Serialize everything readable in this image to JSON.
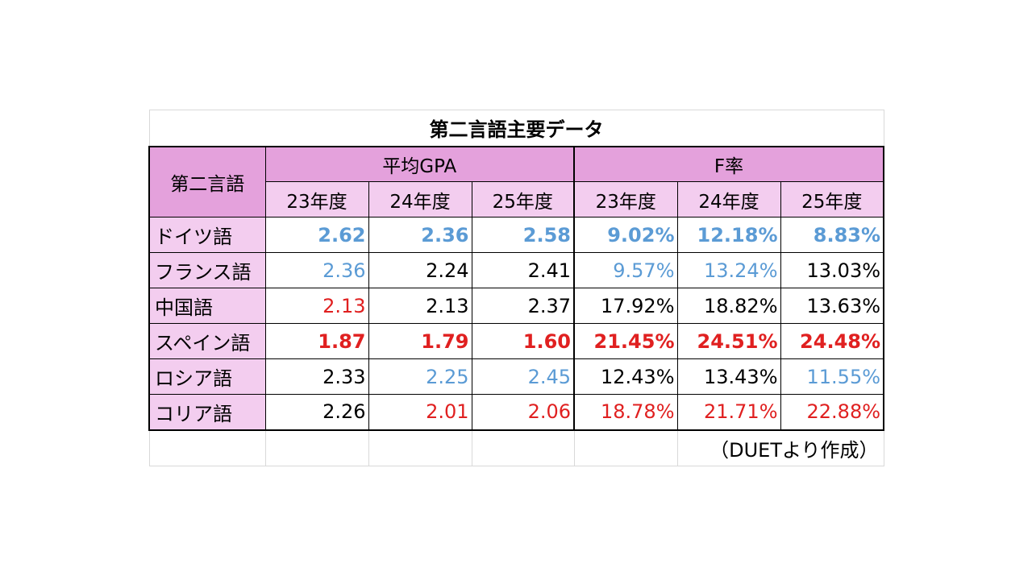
{
  "title": "第二言語主要データ",
  "header": {
    "language_col": "第二言語",
    "group_gpa": "平均GPA",
    "group_f": "F率",
    "years": [
      "23年度",
      "24年度",
      "25年度"
    ]
  },
  "rows": [
    {
      "language": "ドイツ語",
      "gpa": [
        "2.62",
        "2.36",
        "2.58"
      ],
      "f": [
        "9.02%",
        "12.18%",
        "8.83%"
      ],
      "gpa_color": [
        "#5b9bd5",
        "#5b9bd5",
        "#5b9bd5"
      ],
      "f_color": [
        "#5b9bd5",
        "#5b9bd5",
        "#5b9bd5"
      ]
    },
    {
      "language": "フランス語",
      "gpa": [
        "2.36",
        "2.24",
        "2.41"
      ],
      "f": [
        "9.57%",
        "13.24%",
        "13.03%"
      ],
      "gpa_color": [
        "#5b9bd5",
        "#000000",
        "#000000"
      ],
      "f_color": [
        "#5b9bd5",
        "#5b9bd5",
        "#000000"
      ]
    },
    {
      "language": "中国語",
      "gpa": [
        "2.13",
        "2.13",
        "2.37"
      ],
      "f": [
        "17.92%",
        "18.82%",
        "13.63%"
      ],
      "gpa_color": [
        "#e02020",
        "#000000",
        "#000000"
      ],
      "f_color": [
        "#000000",
        "#000000",
        "#000000"
      ]
    },
    {
      "language": "スペイン語",
      "gpa": [
        "1.87",
        "1.79",
        "1.60"
      ],
      "f": [
        "21.45%",
        "24.51%",
        "24.48%"
      ],
      "gpa_color": [
        "#e02020",
        "#e02020",
        "#e02020"
      ],
      "f_color": [
        "#e02020",
        "#e02020",
        "#e02020"
      ]
    },
    {
      "language": "ロシア語",
      "gpa": [
        "2.33",
        "2.25",
        "2.45"
      ],
      "f": [
        "12.43%",
        "13.43%",
        "11.55%"
      ],
      "gpa_color": [
        "#000000",
        "#5b9bd5",
        "#5b9bd5"
      ],
      "f_color": [
        "#000000",
        "#000000",
        "#5b9bd5"
      ]
    },
    {
      "language": "コリア語",
      "gpa": [
        "2.26",
        "2.01",
        "2.06"
      ],
      "f": [
        "18.78%",
        "21.71%",
        "22.88%"
      ],
      "gpa_color": [
        "#000000",
        "#e02020",
        "#e02020"
      ],
      "f_color": [
        "#e02020",
        "#e02020",
        "#e02020"
      ]
    }
  ],
  "source": "（DUETより作成）",
  "colors": {
    "header_dark": "#e4a1dc",
    "header_light": "#f3cdef",
    "best": "#5b9bd5",
    "worst": "#e02020"
  }
}
